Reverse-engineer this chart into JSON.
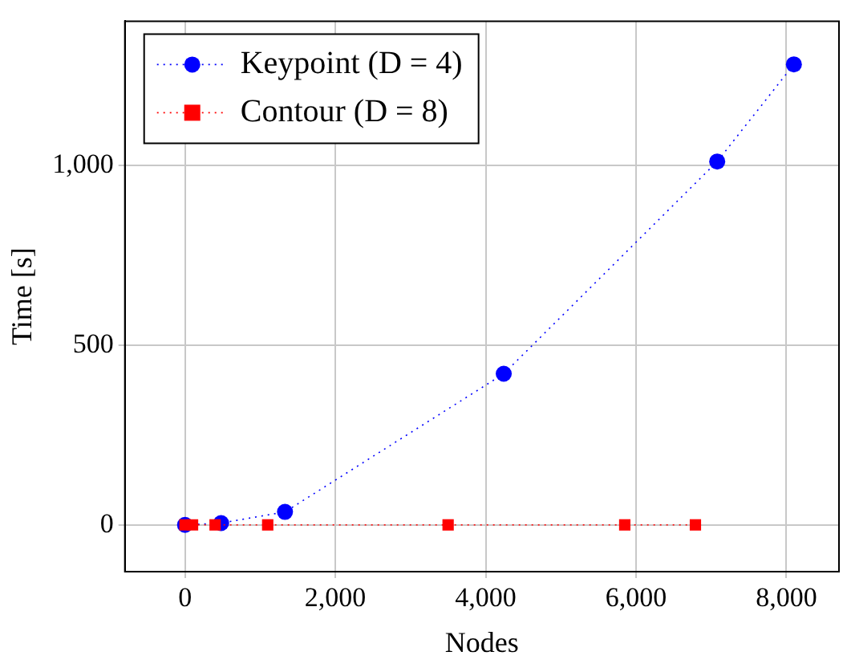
{
  "chart_data": {
    "type": "line",
    "xlabel": "Nodes",
    "ylabel": "Time [s]",
    "xlim": [
      -800,
      8700
    ],
    "ylim": [
      -130,
      1400
    ],
    "xticks": [
      0,
      {
        "value": 2000,
        "label": "2,000"
      },
      {
        "value": 4000,
        "label": "4,000"
      },
      {
        "value": 6000,
        "label": "6,000"
      },
      {
        "value": 8000,
        "label": "8,000"
      }
    ],
    "yticks": [
      0,
      500,
      {
        "value": 1000,
        "label": "1,000"
      }
    ],
    "grid": true,
    "legend": "top left",
    "line_style": "dotted",
    "series": [
      {
        "name": "Keypoint (D = 4)",
        "color": "#0000ff",
        "marker": "circle",
        "x": [
          0,
          480,
          1330,
          4240,
          7080,
          8100
        ],
        "values": [
          0,
          5,
          36,
          420,
          1010,
          1280
        ]
      },
      {
        "name": "Contour (D = 8)",
        "color": "#ff0000",
        "marker": "square",
        "x": [
          0,
          100,
          400,
          1100,
          3500,
          5850,
          6790
        ],
        "values": [
          0,
          0,
          0,
          0,
          0,
          0,
          0
        ]
      }
    ]
  }
}
